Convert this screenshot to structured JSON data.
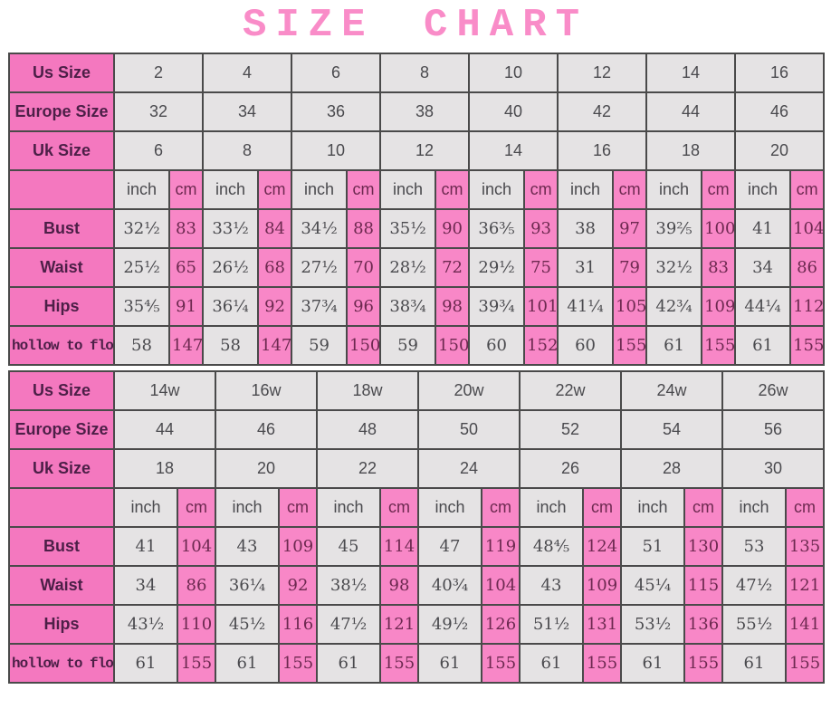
{
  "title": "SIZE CHART",
  "colors": {
    "title_pink": "#f98cc8",
    "pink_label_cell": "#f478bf",
    "pink_value_cell": "#f887c7",
    "gray_cell": "#e5e3e4",
    "border": "#4a4a4a",
    "label_text": "#4c1f47",
    "pink_cell_text": "#6d2950",
    "gray_cell_text": "#4a4a4e"
  },
  "unit_labels": {
    "inch": "inch",
    "cm": "cm"
  },
  "chart_data": [
    {
      "type": "table",
      "size_rows": [
        {
          "label": "Us Size",
          "values": [
            "2",
            "4",
            "6",
            "8",
            "10",
            "12",
            "14",
            "16"
          ]
        },
        {
          "label": "Europe Size",
          "values": [
            "32",
            "34",
            "36",
            "38",
            "40",
            "42",
            "44",
            "46"
          ]
        },
        {
          "label": "Uk Size",
          "values": [
            "6",
            "8",
            "10",
            "12",
            "14",
            "16",
            "18",
            "20"
          ]
        }
      ],
      "measure_rows": [
        {
          "label": "Bust",
          "pairs": [
            [
              "32½",
              "83"
            ],
            [
              "33½",
              "84"
            ],
            [
              "34½",
              "88"
            ],
            [
              "35½",
              "90"
            ],
            [
              "36⅗",
              "93"
            ],
            [
              "38",
              "97"
            ],
            [
              "39⅖",
              "100"
            ],
            [
              "41",
              "104"
            ]
          ]
        },
        {
          "label": "Waist",
          "pairs": [
            [
              "25½",
              "65"
            ],
            [
              "26½",
              "68"
            ],
            [
              "27½",
              "70"
            ],
            [
              "28½",
              "72"
            ],
            [
              "29½",
              "75"
            ],
            [
              "31",
              "79"
            ],
            [
              "32½",
              "83"
            ],
            [
              "34",
              "86"
            ]
          ]
        },
        {
          "label": "Hips",
          "pairs": [
            [
              "35⅘",
              "91"
            ],
            [
              "36¼",
              "92"
            ],
            [
              "37¾",
              "96"
            ],
            [
              "38¾",
              "98"
            ],
            [
              "39¾",
              "101"
            ],
            [
              "41¼",
              "105"
            ],
            [
              "42¾",
              "109"
            ],
            [
              "44¼",
              "112"
            ]
          ]
        },
        {
          "label": "hollow to floor",
          "pairs": [
            [
              "58",
              "147"
            ],
            [
              "58",
              "147"
            ],
            [
              "59",
              "150"
            ],
            [
              "59",
              "150"
            ],
            [
              "60",
              "152"
            ],
            [
              "60",
              "155"
            ],
            [
              "61",
              "155"
            ],
            [
              "61",
              "155"
            ]
          ]
        }
      ]
    },
    {
      "type": "table",
      "size_rows": [
        {
          "label": "Us Size",
          "values": [
            "14w",
            "16w",
            "18w",
            "20w",
            "22w",
            "24w",
            "26w"
          ]
        },
        {
          "label": "Europe Size",
          "values": [
            "44",
            "46",
            "48",
            "50",
            "52",
            "54",
            "56"
          ]
        },
        {
          "label": "Uk Size",
          "values": [
            "18",
            "20",
            "22",
            "24",
            "26",
            "28",
            "30"
          ]
        }
      ],
      "measure_rows": [
        {
          "label": "Bust",
          "pairs": [
            [
              "41",
              "104"
            ],
            [
              "43",
              "109"
            ],
            [
              "45",
              "114"
            ],
            [
              "47",
              "119"
            ],
            [
              "48⅘",
              "124"
            ],
            [
              "51",
              "130"
            ],
            [
              "53",
              "135"
            ]
          ]
        },
        {
          "label": "Waist",
          "pairs": [
            [
              "34",
              "86"
            ],
            [
              "36¼",
              "92"
            ],
            [
              "38½",
              "98"
            ],
            [
              "40¾",
              "104"
            ],
            [
              "43",
              "109"
            ],
            [
              "45¼",
              "115"
            ],
            [
              "47½",
              "121"
            ]
          ]
        },
        {
          "label": "Hips",
          "pairs": [
            [
              "43½",
              "110"
            ],
            [
              "45½",
              "116"
            ],
            [
              "47½",
              "121"
            ],
            [
              "49½",
              "126"
            ],
            [
              "51½",
              "131"
            ],
            [
              "53½",
              "136"
            ],
            [
              "55½",
              "141"
            ]
          ]
        },
        {
          "label": "hollow to floor",
          "pairs": [
            [
              "61",
              "155"
            ],
            [
              "61",
              "155"
            ],
            [
              "61",
              "155"
            ],
            [
              "61",
              "155"
            ],
            [
              "61",
              "155"
            ],
            [
              "61",
              "155"
            ],
            [
              "61",
              "155"
            ]
          ]
        }
      ]
    }
  ]
}
